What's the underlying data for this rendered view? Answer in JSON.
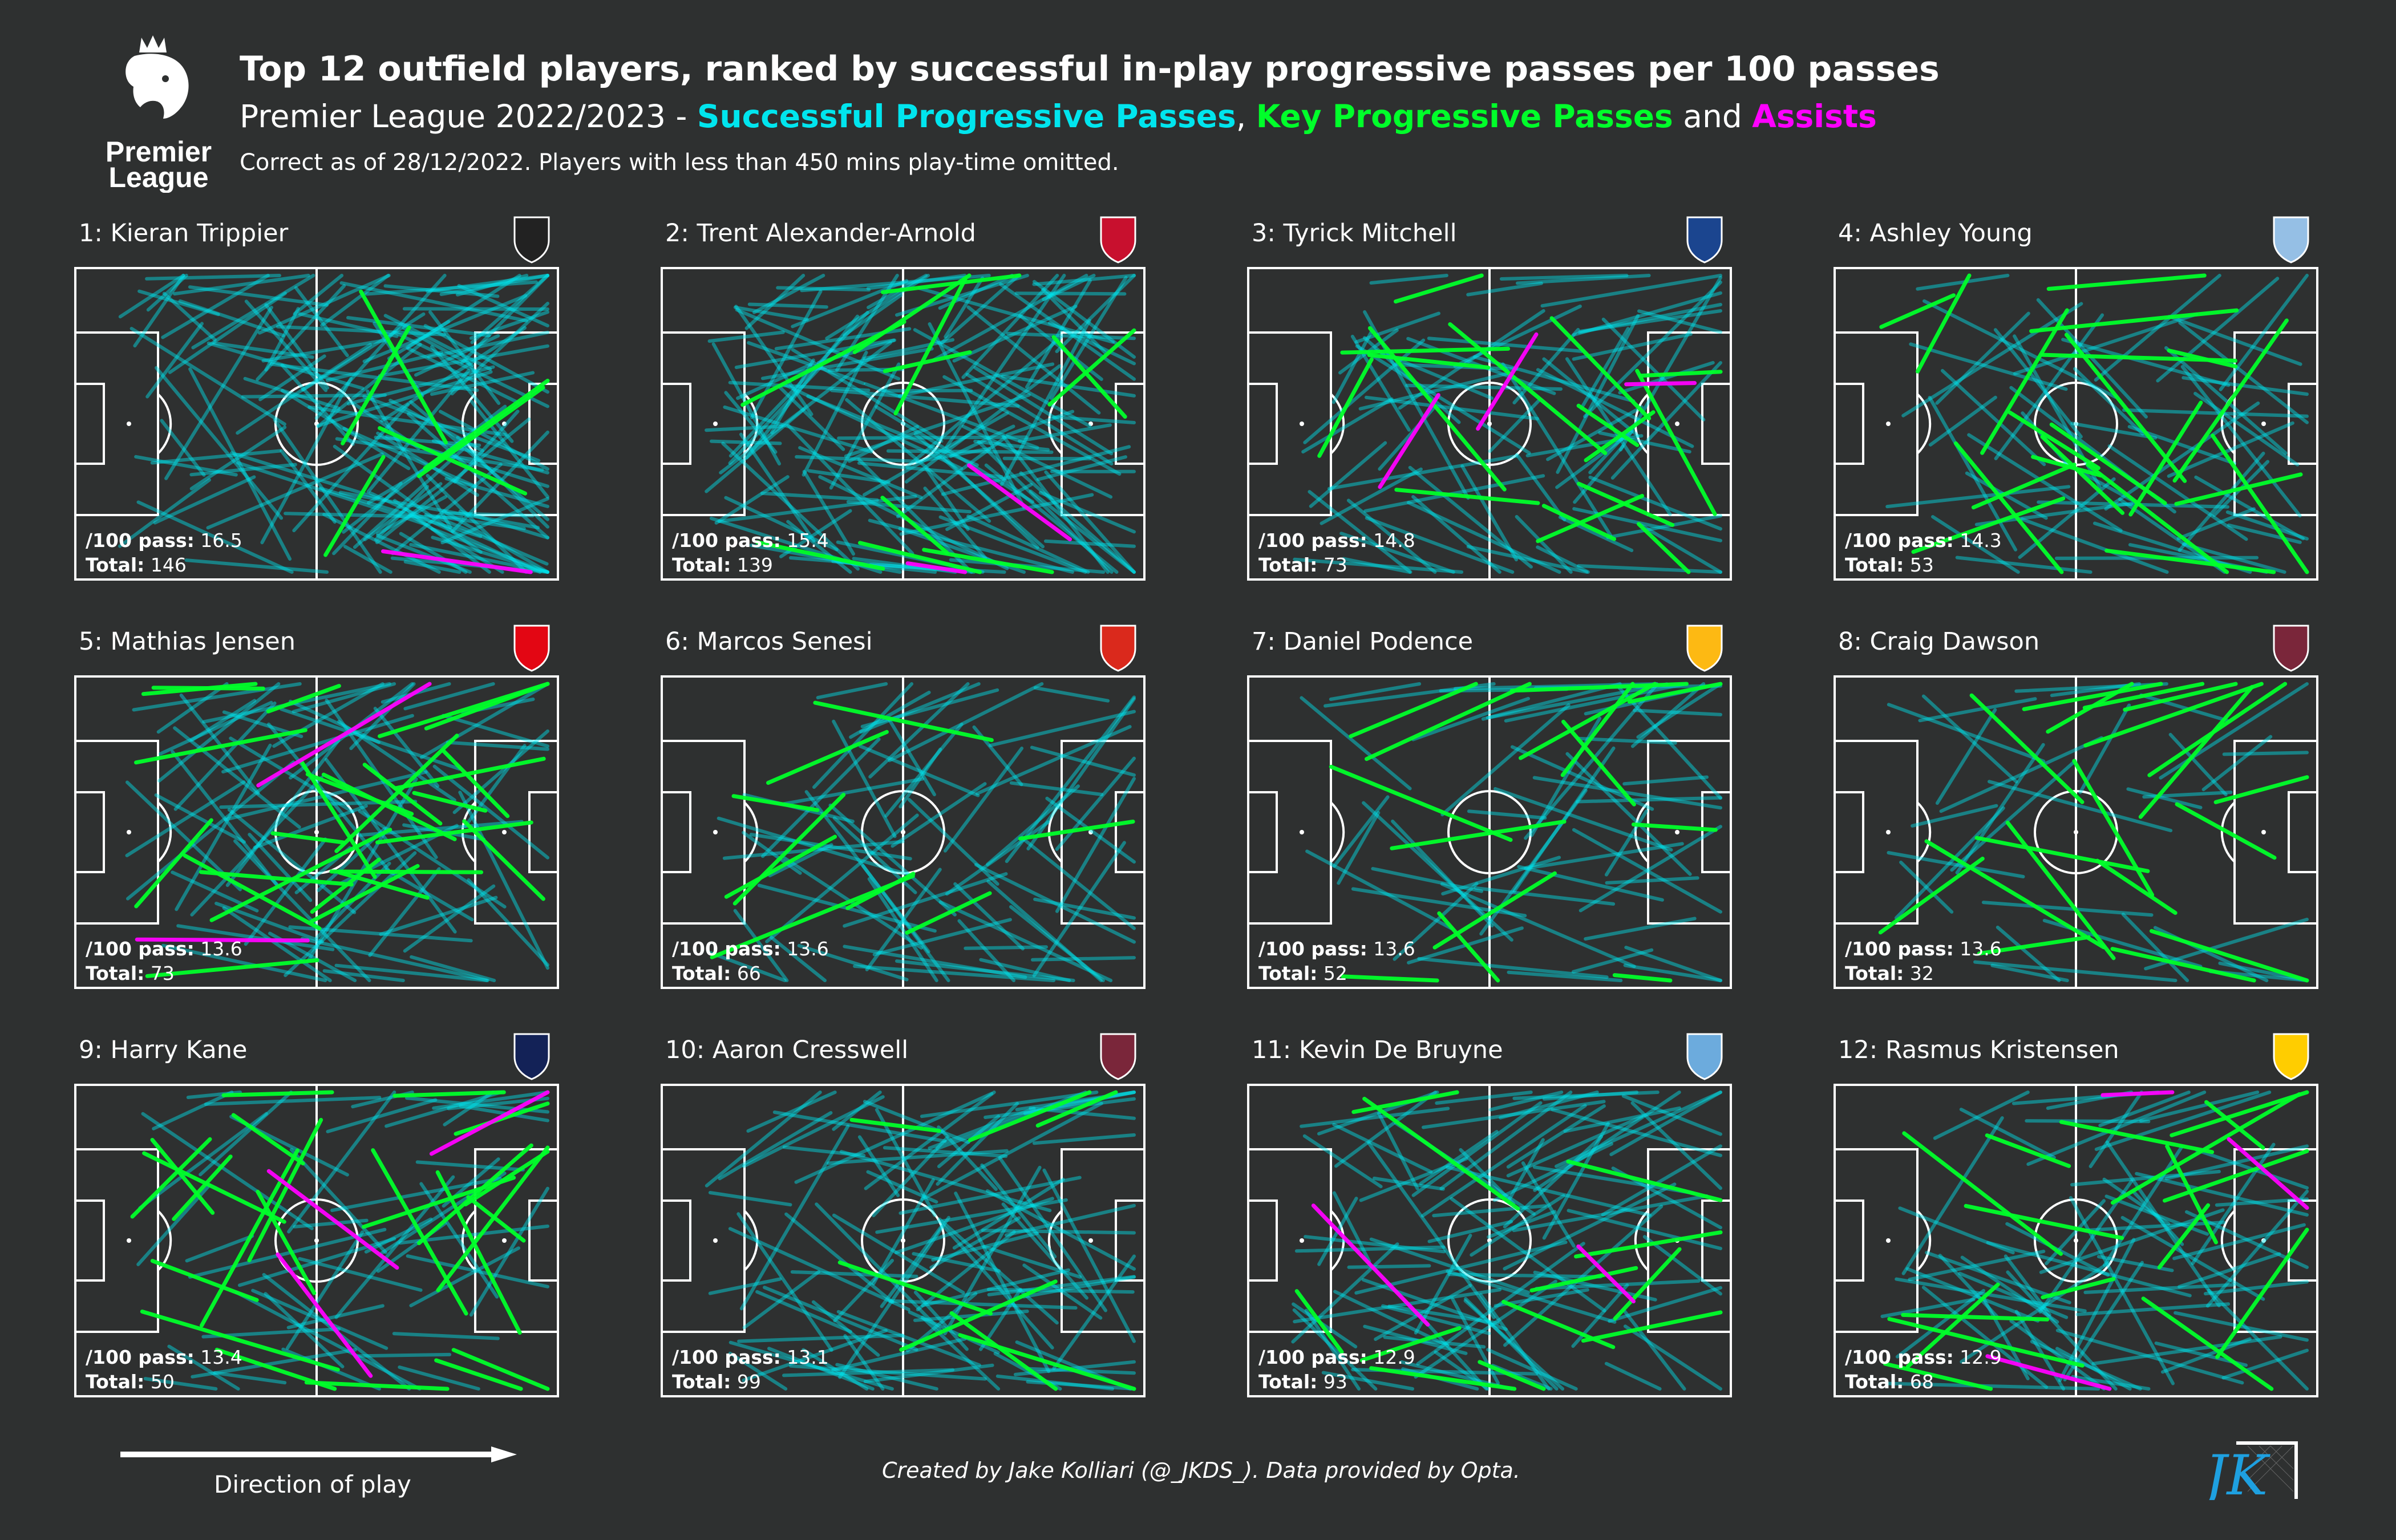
{
  "header": {
    "title": "Top 12 outfield players, ranked by successful in-play progressive passes per 100 passes",
    "subtitle_prefix": "Premier League 2022/2023 - ",
    "legend_progressive": "Successful Progressive Passes",
    "sep_comma": ", ",
    "legend_key": "Key Progressive Passes",
    "sep_and": " and ",
    "legend_assists": "Assists",
    "note": "Correct as of 28/12/2022. Players with less than 450 mins play-time omitted.",
    "logo_text_line1": "Premier",
    "logo_text_line2": "League"
  },
  "colors": {
    "background": "#2e3030",
    "progressive": "#00e5ee",
    "key": "#00ff2a",
    "assist": "#ff00ff",
    "pitch_lines": "#ffffff"
  },
  "labels": {
    "per100": "/100 pass:",
    "total": "Total:"
  },
  "chart_data": {
    "type": "scatter",
    "description_of_marks": "pass lines on pitch, per player",
    "players": [
      {
        "rank": 1,
        "title": "1: Kieran Trippier",
        "club_icon": "newcastle-crest-icon",
        "per100": "16.5",
        "total": "146"
      },
      {
        "rank": 2,
        "title": "2: Trent Alexander-Arnold",
        "club_icon": "liverpool-crest-icon",
        "per100": "15.4",
        "total": "139"
      },
      {
        "rank": 3,
        "title": "3: Tyrick Mitchell",
        "club_icon": "crystal-palace-crest-icon",
        "per100": "14.8",
        "total": "73"
      },
      {
        "rank": 4,
        "title": "4: Ashley Young",
        "club_icon": "aston-villa-crest-icon",
        "per100": "14.3",
        "total": "53"
      },
      {
        "rank": 5,
        "title": "5: Mathias Jensen",
        "club_icon": "brentford-crest-icon",
        "per100": "13.6",
        "total": "73"
      },
      {
        "rank": 6,
        "title": "6: Marcos Senesi",
        "club_icon": "bournemouth-crest-icon",
        "per100": "13.6",
        "total": "66"
      },
      {
        "rank": 7,
        "title": "7: Daniel Podence",
        "club_icon": "wolves-crest-icon",
        "per100": "13.6",
        "total": "52"
      },
      {
        "rank": 8,
        "title": "8: Craig Dawson",
        "club_icon": "west-ham-crest-icon",
        "per100": "13.6",
        "total": "32"
      },
      {
        "rank": 9,
        "title": "9: Harry Kane",
        "club_icon": "tottenham-crest-icon",
        "per100": "13.4",
        "total": "50"
      },
      {
        "rank": 10,
        "title": "10: Aaron Cresswell",
        "club_icon": "west-ham-crest-icon",
        "per100": "13.1",
        "total": "99"
      },
      {
        "rank": 11,
        "title": "11: Kevin De Bruyne",
        "club_icon": "man-city-crest-icon",
        "per100": "12.9",
        "total": "93"
      },
      {
        "rank": 12,
        "title": "12: Rasmus Kristensen",
        "club_icon": "leeds-crest-icon",
        "per100": "12.9",
        "total": "68"
      }
    ]
  },
  "footer": {
    "direction_label": "Direction of play",
    "credit": "Created by Jake Kolliari (@_JKDS_). Data provided by Opta.",
    "brand_text": "JK"
  }
}
